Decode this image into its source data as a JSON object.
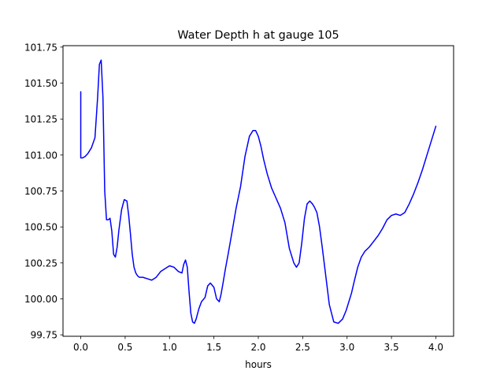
{
  "chart_data": {
    "type": "line",
    "title": "Water Depth h at gauge 105",
    "xlabel": "hours",
    "ylabel": "",
    "xlim": [
      -0.2,
      4.2
    ],
    "ylim": [
      99.74,
      101.76
    ],
    "xticks": [
      0.0,
      0.5,
      1.0,
      1.5,
      2.0,
      2.5,
      3.0,
      3.5,
      4.0
    ],
    "xtick_labels": [
      "0.0",
      "0.5",
      "1.0",
      "1.5",
      "2.0",
      "2.5",
      "3.0",
      "3.5",
      "4.0"
    ],
    "yticks": [
      99.75,
      100.0,
      100.25,
      100.5,
      100.75,
      101.0,
      101.25,
      101.5,
      101.75
    ],
    "ytick_labels": [
      "99.75",
      "100.00",
      "100.25",
      "100.50",
      "100.75",
      "101.00",
      "101.25",
      "101.50",
      "101.75"
    ],
    "grid": false,
    "series": [
      {
        "color": "#0000ff",
        "x": [
          0.0,
          0.0,
          0.02,
          0.05,
          0.08,
          0.12,
          0.16,
          0.19,
          0.21,
          0.23,
          0.25,
          0.27,
          0.29,
          0.31,
          0.33,
          0.35,
          0.37,
          0.39,
          0.41,
          0.43,
          0.46,
          0.49,
          0.52,
          0.54,
          0.56,
          0.58,
          0.6,
          0.62,
          0.64,
          0.66,
          0.7,
          0.75,
          0.8,
          0.85,
          0.9,
          0.95,
          1.0,
          1.05,
          1.1,
          1.14,
          1.16,
          1.18,
          1.2,
          1.22,
          1.24,
          1.26,
          1.28,
          1.3,
          1.33,
          1.36,
          1.4,
          1.43,
          1.46,
          1.5,
          1.53,
          1.56,
          1.58,
          1.6,
          1.63,
          1.66,
          1.7,
          1.75,
          1.8,
          1.85,
          1.9,
          1.94,
          1.97,
          2.0,
          2.03,
          2.06,
          2.1,
          2.15,
          2.2,
          2.25,
          2.3,
          2.35,
          2.4,
          2.43,
          2.46,
          2.49,
          2.52,
          2.55,
          2.58,
          2.61,
          2.63,
          2.66,
          2.69,
          2.72,
          2.75,
          2.8,
          2.85,
          2.9,
          2.95,
          2.99,
          3.02,
          3.05,
          3.08,
          3.12,
          3.16,
          3.2,
          3.25,
          3.3,
          3.35,
          3.4,
          3.45,
          3.5,
          3.55,
          3.6,
          3.65,
          3.7,
          3.75,
          3.8,
          3.85,
          3.9,
          3.95,
          4.0
        ],
        "y": [
          101.44,
          100.98,
          100.98,
          100.99,
          101.01,
          101.05,
          101.12,
          101.4,
          101.63,
          101.66,
          101.4,
          100.75,
          100.55,
          100.55,
          100.56,
          100.47,
          100.31,
          100.29,
          100.36,
          100.48,
          100.62,
          100.69,
          100.68,
          100.58,
          100.45,
          100.31,
          100.22,
          100.18,
          100.16,
          100.15,
          100.15,
          100.14,
          100.13,
          100.15,
          100.19,
          100.21,
          100.23,
          100.22,
          100.19,
          100.18,
          100.24,
          100.27,
          100.22,
          100.05,
          99.9,
          99.84,
          99.83,
          99.86,
          99.93,
          99.98,
          100.01,
          100.09,
          100.11,
          100.08,
          100.0,
          99.98,
          100.03,
          100.1,
          100.21,
          100.31,
          100.45,
          100.63,
          100.78,
          100.99,
          101.13,
          101.17,
          101.17,
          101.13,
          101.06,
          100.97,
          100.87,
          100.77,
          100.7,
          100.63,
          100.53,
          100.35,
          100.25,
          100.22,
          100.25,
          100.39,
          100.56,
          100.66,
          100.68,
          100.66,
          100.64,
          100.6,
          100.5,
          100.36,
          100.21,
          99.96,
          99.84,
          99.83,
          99.86,
          99.92,
          99.98,
          100.04,
          100.12,
          100.22,
          100.29,
          100.33,
          100.36,
          100.4,
          100.44,
          100.49,
          100.55,
          100.58,
          100.59,
          100.58,
          100.6,
          100.66,
          100.73,
          100.81,
          100.9,
          101.0,
          101.1,
          101.2
        ]
      }
    ]
  }
}
